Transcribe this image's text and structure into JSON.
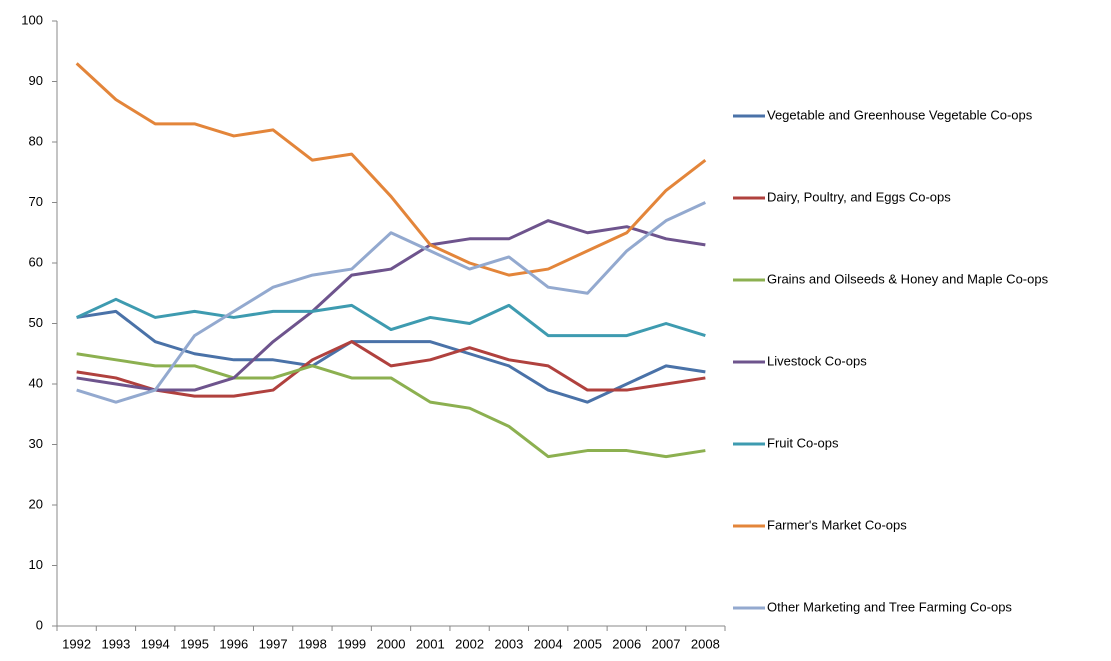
{
  "chart_data": {
    "type": "line",
    "categories": [
      "1992",
      "1993",
      "1994",
      "1995",
      "1996",
      "1997",
      "1998",
      "1999",
      "2000",
      "2001",
      "2002",
      "2003",
      "2004",
      "2005",
      "2006",
      "2007",
      "2008"
    ],
    "series": [
      {
        "name": "Vegetable and Greenhouse Vegetable Co-ops",
        "color": "#4a72a8",
        "values": [
          51,
          52,
          47,
          45,
          44,
          44,
          43,
          47,
          47,
          47,
          45,
          43,
          39,
          37,
          40,
          43,
          42
        ]
      },
      {
        "name": "Dairy, Poultry, and Eggs Co-ops",
        "color": "#b0413e",
        "values": [
          42,
          41,
          39,
          38,
          38,
          39,
          44,
          47,
          43,
          44,
          46,
          44,
          43,
          39,
          39,
          40,
          41
        ]
      },
      {
        "name": "Grains and Oilseeds & Honey and Maple Co-ops",
        "color": "#8cb050",
        "values": [
          45,
          44,
          43,
          43,
          41,
          41,
          43,
          41,
          41,
          37,
          36,
          33,
          28,
          29,
          29,
          28,
          29
        ]
      },
      {
        "name": "Livestock Co-ops",
        "color": "#6e548d",
        "values": [
          41,
          40,
          39,
          39,
          41,
          47,
          52,
          58,
          59,
          63,
          64,
          64,
          67,
          65,
          66,
          64,
          63
        ]
      },
      {
        "name": "Fruit Co-ops",
        "color": "#3e9bb0",
        "values": [
          51,
          54,
          51,
          52,
          51,
          52,
          52,
          53,
          49,
          51,
          50,
          53,
          48,
          48,
          48,
          50,
          48
        ]
      },
      {
        "name": "Farmer's Market Co-ops",
        "color": "#e3853a",
        "values": [
          93,
          87,
          83,
          83,
          81,
          82,
          77,
          78,
          71,
          63,
          60,
          58,
          59,
          62,
          65,
          72,
          77
        ]
      },
      {
        "name": "Other Marketing and Tree Farming Co-ops",
        "color": "#93a9cf",
        "values": [
          39,
          37,
          39,
          48,
          52,
          56,
          58,
          59,
          65,
          62,
          59,
          61,
          56,
          55,
          62,
          67,
          70
        ]
      }
    ],
    "ylim": [
      0,
      100
    ],
    "yticks": [
      0,
      10,
      20,
      30,
      40,
      50,
      60,
      70,
      80,
      90,
      100
    ],
    "grid": false,
    "legend": "right"
  }
}
